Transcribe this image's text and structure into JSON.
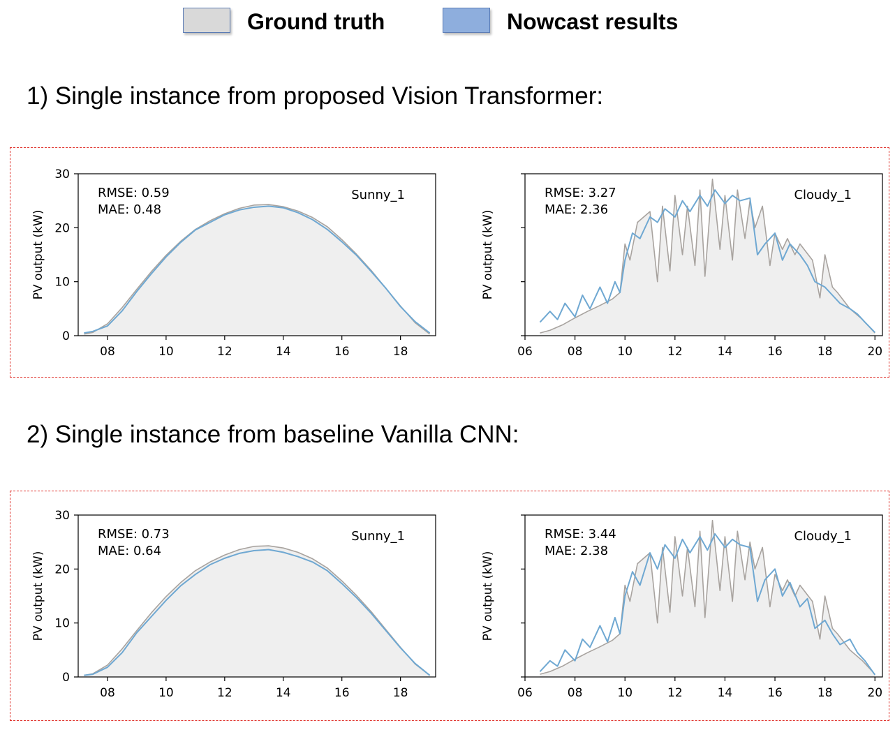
{
  "legend": {
    "items": [
      {
        "label": "Ground truth",
        "fill": "#d9d9d9",
        "color": "#a8a39f"
      },
      {
        "label": "Nowcast results",
        "fill": "#8eaedd",
        "color": "#6fa8d2"
      }
    ]
  },
  "sections": [
    {
      "title": "1) Single instance from proposed Vision Transformer:"
    },
    {
      "title": "2) Single instance from baseline Vanilla CNN:"
    }
  ],
  "colors": {
    "ground_truth": "#a8a39f",
    "nowcast": "#6fa8d2",
    "fill": "#efefef",
    "panel_border": "#e0332d"
  },
  "chart_data": [
    {
      "type": "line",
      "section": 1,
      "scenario": "Sunny_1",
      "ylabel": "PV output (kW)",
      "xlabel": "",
      "xlim": [
        7.0,
        19.2
      ],
      "ylim": [
        0,
        30
      ],
      "xticks": [
        "08",
        "10",
        "12",
        "14",
        "16",
        "18"
      ],
      "xtick_values": [
        8,
        10,
        12,
        14,
        16,
        18
      ],
      "yticks": [
        "0",
        "10",
        "20",
        "30"
      ],
      "ytick_values": [
        0,
        10,
        20,
        30
      ],
      "show_ytick_labels": true,
      "metrics": [
        "RMSE: 0.59",
        "MAE: 0.48"
      ],
      "series": [
        {
          "name": "Ground truth",
          "x": [
            7.2,
            7.5,
            8.0,
            8.5,
            9.0,
            9.5,
            10.0,
            10.5,
            11.0,
            11.5,
            12.0,
            12.5,
            13.0,
            13.5,
            14.0,
            14.5,
            15.0,
            15.5,
            16.0,
            16.5,
            17.0,
            17.5,
            18.0,
            18.5,
            19.0
          ],
          "y": [
            0.3,
            0.6,
            2.2,
            5.2,
            8.6,
            11.9,
            14.9,
            17.5,
            19.7,
            21.3,
            22.6,
            23.6,
            24.2,
            24.3,
            23.9,
            23.1,
            21.9,
            20.2,
            17.8,
            15.1,
            12.1,
            8.8,
            5.5,
            2.4,
            0.3
          ]
        },
        {
          "name": "Nowcast results",
          "x": [
            7.2,
            7.5,
            8.0,
            8.5,
            9.0,
            9.5,
            10.0,
            10.5,
            11.0,
            11.5,
            12.0,
            12.5,
            13.0,
            13.5,
            14.0,
            14.5,
            15.0,
            15.5,
            16.0,
            16.5,
            17.0,
            17.5,
            18.0,
            18.5,
            19.0
          ],
          "y": [
            0.5,
            0.8,
            1.8,
            4.6,
            8.2,
            11.5,
            14.6,
            17.3,
            19.6,
            21.0,
            22.4,
            23.3,
            23.8,
            24.0,
            23.7,
            22.8,
            21.5,
            19.7,
            17.4,
            14.9,
            11.9,
            8.8,
            5.4,
            2.6,
            0.5
          ]
        }
      ]
    },
    {
      "type": "line",
      "section": 1,
      "scenario": "Cloudy_1",
      "ylabel": "PV output (kW)",
      "xlabel": "",
      "xlim": [
        6.0,
        20.3
      ],
      "ylim": [
        0,
        30
      ],
      "xticks": [
        "06",
        "08",
        "10",
        "12",
        "14",
        "16",
        "18",
        "20"
      ],
      "xtick_values": [
        6,
        8,
        10,
        12,
        14,
        16,
        18,
        20
      ],
      "yticks": [
        "",
        "",
        "",
        ""
      ],
      "ytick_values": [
        0,
        10,
        20,
        30
      ],
      "show_ytick_labels": false,
      "metrics": [
        "RMSE: 3.27",
        "MAE: 2.36"
      ],
      "series": [
        {
          "name": "Ground truth",
          "x": [
            6.6,
            7.0,
            7.5,
            8.0,
            8.5,
            9.0,
            9.5,
            9.8,
            10.0,
            10.2,
            10.5,
            11.0,
            11.3,
            11.5,
            11.8,
            12.0,
            12.3,
            12.5,
            12.8,
            13.0,
            13.2,
            13.5,
            13.8,
            14.0,
            14.3,
            14.5,
            14.8,
            15.0,
            15.2,
            15.5,
            15.8,
            16.0,
            16.3,
            16.5,
            16.8,
            17.0,
            17.5,
            17.8,
            18.0,
            18.3,
            18.5,
            19.0,
            19.5,
            20.0
          ],
          "y": [
            0.5,
            1.0,
            2.0,
            3.3,
            4.5,
            5.6,
            6.8,
            8.0,
            17.0,
            14.0,
            21.0,
            23.0,
            10.0,
            24.0,
            12.0,
            26.0,
            15.0,
            24.0,
            13.0,
            27.0,
            11.0,
            29.0,
            16.0,
            26.0,
            14.0,
            27.0,
            18.0,
            25.0,
            20.0,
            24.0,
            13.0,
            19.0,
            16.0,
            18.0,
            15.0,
            17.0,
            14.0,
            7.0,
            15.0,
            9.0,
            8.0,
            5.0,
            3.0,
            0.5
          ]
        },
        {
          "name": "Nowcast results",
          "x": [
            6.6,
            7.0,
            7.3,
            7.6,
            8.0,
            8.3,
            8.6,
            9.0,
            9.3,
            9.6,
            9.8,
            10.0,
            10.3,
            10.6,
            11.0,
            11.3,
            11.6,
            12.0,
            12.3,
            12.6,
            13.0,
            13.3,
            13.6,
            14.0,
            14.3,
            14.6,
            15.0,
            15.3,
            15.6,
            16.0,
            16.3,
            16.6,
            17.0,
            17.3,
            17.6,
            18.0,
            18.3,
            18.6,
            19.0,
            19.3,
            19.6,
            20.0
          ],
          "y": [
            2.5,
            4.5,
            3.0,
            6.0,
            3.5,
            7.5,
            5.0,
            9.0,
            6.0,
            10.0,
            8.0,
            14.0,
            19.0,
            18.0,
            22.0,
            21.0,
            23.5,
            22.0,
            25.0,
            23.0,
            26.0,
            24.0,
            27.0,
            24.5,
            26.0,
            25.0,
            25.5,
            15.0,
            17.0,
            19.0,
            14.0,
            17.0,
            15.0,
            13.0,
            10.0,
            9.0,
            7.5,
            6.0,
            5.0,
            4.0,
            2.5,
            0.6
          ]
        }
      ]
    },
    {
      "type": "line",
      "section": 2,
      "scenario": "Sunny_1",
      "ylabel": "PV output (kW)",
      "xlabel": "",
      "xlim": [
        7.0,
        19.2
      ],
      "ylim": [
        0,
        30
      ],
      "xticks": [
        "08",
        "10",
        "12",
        "14",
        "16",
        "18"
      ],
      "xtick_values": [
        8,
        10,
        12,
        14,
        16,
        18
      ],
      "yticks": [
        "0",
        "10",
        "20",
        "30"
      ],
      "ytick_values": [
        0,
        10,
        20,
        30
      ],
      "show_ytick_labels": true,
      "metrics": [
        "RMSE: 0.73",
        "MAE: 0.64"
      ],
      "series": [
        {
          "name": "Ground truth",
          "x": [
            7.2,
            7.5,
            8.0,
            8.5,
            9.0,
            9.5,
            10.0,
            10.5,
            11.0,
            11.5,
            12.0,
            12.5,
            13.0,
            13.5,
            14.0,
            14.5,
            15.0,
            15.5,
            16.0,
            16.5,
            17.0,
            17.5,
            18.0,
            18.5,
            19.0
          ],
          "y": [
            0.3,
            0.6,
            2.2,
            5.2,
            8.6,
            11.9,
            14.9,
            17.5,
            19.7,
            21.3,
            22.6,
            23.6,
            24.2,
            24.3,
            23.9,
            23.1,
            21.9,
            20.2,
            17.8,
            15.1,
            12.1,
            8.8,
            5.5,
            2.4,
            0.3
          ]
        },
        {
          "name": "Nowcast results",
          "x": [
            7.2,
            7.5,
            8.0,
            8.5,
            9.0,
            9.5,
            10.0,
            10.5,
            11.0,
            11.5,
            12.0,
            12.5,
            13.0,
            13.5,
            14.0,
            14.5,
            15.0,
            15.5,
            16.0,
            16.5,
            17.0,
            17.5,
            18.0,
            18.5,
            19.0
          ],
          "y": [
            0.3,
            0.5,
            1.8,
            4.5,
            8.2,
            11.2,
            14.2,
            16.9,
            19.0,
            20.8,
            22.0,
            22.9,
            23.4,
            23.6,
            23.1,
            22.3,
            21.3,
            19.7,
            17.3,
            14.7,
            11.8,
            8.6,
            5.4,
            2.5,
            0.3
          ]
        }
      ]
    },
    {
      "type": "line",
      "section": 2,
      "scenario": "Cloudy_1",
      "ylabel": "PV output (kW)",
      "xlabel": "",
      "xlim": [
        6.0,
        20.3
      ],
      "ylim": [
        0,
        30
      ],
      "xticks": [
        "06",
        "08",
        "10",
        "12",
        "14",
        "16",
        "18",
        "20"
      ],
      "xtick_values": [
        6,
        8,
        10,
        12,
        14,
        16,
        18,
        20
      ],
      "yticks": [
        "",
        "",
        "",
        ""
      ],
      "ytick_values": [
        0,
        10,
        20,
        30
      ],
      "show_ytick_labels": false,
      "metrics": [
        "RMSE: 3.44",
        "MAE: 2.38"
      ],
      "series": [
        {
          "name": "Ground truth",
          "x": [
            6.6,
            7.0,
            7.5,
            8.0,
            8.5,
            9.0,
            9.5,
            9.8,
            10.0,
            10.2,
            10.5,
            11.0,
            11.3,
            11.5,
            11.8,
            12.0,
            12.3,
            12.5,
            12.8,
            13.0,
            13.2,
            13.5,
            13.8,
            14.0,
            14.3,
            14.5,
            14.8,
            15.0,
            15.2,
            15.5,
            15.8,
            16.0,
            16.3,
            16.5,
            16.8,
            17.0,
            17.5,
            17.8,
            18.0,
            18.3,
            18.5,
            19.0,
            19.5,
            20.0
          ],
          "y": [
            0.5,
            1.0,
            2.0,
            3.3,
            4.5,
            5.6,
            6.8,
            8.0,
            17.0,
            14.0,
            21.0,
            23.0,
            10.0,
            24.0,
            12.0,
            26.0,
            15.0,
            24.0,
            13.0,
            27.0,
            11.0,
            29.0,
            16.0,
            26.0,
            14.0,
            27.0,
            18.0,
            25.0,
            20.0,
            24.0,
            13.0,
            19.0,
            16.0,
            18.0,
            15.0,
            17.0,
            14.0,
            7.0,
            15.0,
            9.0,
            8.0,
            5.0,
            3.0,
            0.5
          ]
        },
        {
          "name": "Nowcast results",
          "x": [
            6.6,
            7.0,
            7.3,
            7.6,
            8.0,
            8.3,
            8.6,
            9.0,
            9.3,
            9.6,
            9.8,
            10.0,
            10.3,
            10.6,
            11.0,
            11.3,
            11.6,
            12.0,
            12.3,
            12.6,
            13.0,
            13.3,
            13.6,
            14.0,
            14.3,
            14.6,
            15.0,
            15.3,
            15.6,
            16.0,
            16.3,
            16.6,
            17.0,
            17.3,
            17.6,
            18.0,
            18.3,
            18.6,
            19.0,
            19.3,
            19.6,
            20.0
          ],
          "y": [
            1.0,
            3.0,
            2.0,
            5.0,
            3.0,
            7.0,
            5.5,
            9.5,
            6.5,
            11.0,
            8.0,
            15.0,
            19.5,
            17.0,
            23.0,
            20.0,
            24.5,
            22.0,
            25.5,
            23.0,
            26.0,
            23.5,
            26.5,
            24.0,
            25.5,
            24.5,
            24.0,
            14.0,
            18.0,
            20.0,
            15.0,
            17.5,
            13.0,
            14.5,
            9.0,
            10.5,
            8.0,
            6.0,
            7.0,
            4.5,
            3.0,
            0.4
          ]
        }
      ]
    }
  ]
}
